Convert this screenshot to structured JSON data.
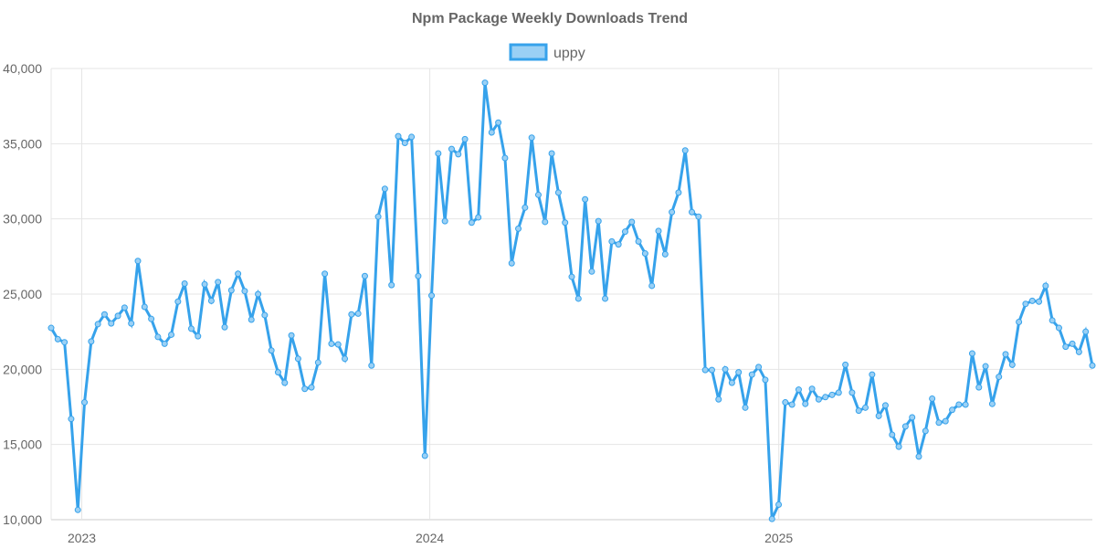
{
  "chart_data": {
    "type": "line",
    "title": "Npm Package Weekly Downloads Trend",
    "xlabel": "",
    "ylabel": "",
    "ylim": [
      10000,
      40000
    ],
    "y_ticks": [
      "10,000",
      "15,000",
      "20,000",
      "25,000",
      "30,000",
      "35,000",
      "40,000"
    ],
    "y_tick_values": [
      10000,
      15000,
      20000,
      25000,
      30000,
      35000,
      40000
    ],
    "x_ticks": [
      {
        "label": "2023",
        "date": "2023-01-01"
      },
      {
        "label": "2024",
        "date": "2024-01-01"
      },
      {
        "label": "2025",
        "date": "2025-01-01"
      }
    ],
    "grid": true,
    "legend_position": "top",
    "series": [
      {
        "name": "uppy",
        "color": "#36a2eb",
        "fill": "#9ad0f5",
        "x": [
          "2022-11-27",
          "2022-12-04",
          "2022-12-11",
          "2022-12-18",
          "2022-12-25",
          "2023-01-01",
          "2023-01-08",
          "2023-01-15",
          "2023-01-22",
          "2023-01-29",
          "2023-02-05",
          "2023-02-12",
          "2023-02-19",
          "2023-02-26",
          "2023-03-05",
          "2023-03-12",
          "2023-03-19",
          "2023-03-26",
          "2023-04-02",
          "2023-04-09",
          "2023-04-16",
          "2023-04-23",
          "2023-04-30",
          "2023-05-07",
          "2023-05-14",
          "2023-05-21",
          "2023-05-28",
          "2023-06-04",
          "2023-06-11",
          "2023-06-18",
          "2023-06-25",
          "2023-07-02",
          "2023-07-09",
          "2023-07-16",
          "2023-07-23",
          "2023-07-30",
          "2023-08-06",
          "2023-08-13",
          "2023-08-20",
          "2023-08-27",
          "2023-09-03",
          "2023-09-10",
          "2023-09-17",
          "2023-09-24",
          "2023-10-01",
          "2023-10-08",
          "2023-10-15",
          "2023-10-22",
          "2023-10-29",
          "2023-11-05",
          "2023-11-12",
          "2023-11-19",
          "2023-11-26",
          "2023-12-03",
          "2023-12-10",
          "2023-12-17",
          "2023-12-24",
          "2023-12-31",
          "2024-01-07",
          "2024-01-14",
          "2024-01-21",
          "2024-01-28",
          "2024-02-04",
          "2024-02-11",
          "2024-02-18",
          "2024-02-25",
          "2024-03-03",
          "2024-03-10",
          "2024-03-17",
          "2024-03-24",
          "2024-03-31",
          "2024-04-07",
          "2024-04-14",
          "2024-04-21",
          "2024-04-28",
          "2024-05-05",
          "2024-05-12",
          "2024-05-19",
          "2024-05-26",
          "2024-06-02",
          "2024-06-09",
          "2024-06-16",
          "2024-06-23",
          "2024-06-30",
          "2024-07-07",
          "2024-07-14",
          "2024-07-21",
          "2024-07-28",
          "2024-08-04",
          "2024-08-11",
          "2024-08-18",
          "2024-08-25",
          "2024-09-01",
          "2024-09-08",
          "2024-09-15",
          "2024-09-22",
          "2024-09-29",
          "2024-10-06",
          "2024-10-13",
          "2024-10-20",
          "2024-10-27",
          "2024-11-03",
          "2024-11-10",
          "2024-11-17",
          "2024-11-24",
          "2024-12-01",
          "2024-12-08",
          "2024-12-15",
          "2024-12-22",
          "2024-12-29",
          "2025-01-05",
          "2025-01-12",
          "2025-01-19",
          "2025-01-26",
          "2025-02-02",
          "2025-02-09",
          "2025-02-16",
          "2025-02-23",
          "2025-03-02",
          "2025-03-09",
          "2025-03-16",
          "2025-03-23",
          "2025-03-30",
          "2025-04-06",
          "2025-04-13",
          "2025-04-20",
          "2025-04-27",
          "2025-05-04",
          "2025-05-11",
          "2025-05-18",
          "2025-05-25",
          "2025-06-01",
          "2025-06-08",
          "2025-06-15",
          "2025-06-22",
          "2025-06-29",
          "2025-07-06",
          "2025-07-13",
          "2025-07-20",
          "2025-07-27",
          "2025-08-03",
          "2025-08-10",
          "2025-08-17",
          "2025-08-24",
          "2025-08-31",
          "2025-09-07",
          "2025-09-14",
          "2025-09-21",
          "2025-09-28",
          "2025-10-05",
          "2025-10-12",
          "2025-10-19",
          "2025-10-26",
          "2025-11-02",
          "2025-11-09",
          "2025-11-16",
          "2025-11-23"
        ],
        "values": [
          22750,
          22000,
          21800,
          16700,
          10650,
          17800,
          21850,
          23000,
          23650,
          23050,
          23550,
          24100,
          23050,
          27200,
          24150,
          23350,
          22150,
          21700,
          22300,
          24500,
          25700,
          22700,
          22200,
          25650,
          24550,
          25800,
          22800,
          25250,
          26350,
          25200,
          23300,
          25000,
          23600,
          21250,
          19800,
          19100,
          22250,
          20700,
          18700,
          18800,
          20450,
          26350,
          21700,
          21650,
          20700,
          23650,
          23700,
          26200,
          20250,
          30150,
          32000,
          25600,
          35500,
          35050,
          35450,
          26200,
          14250,
          24900,
          34350,
          29850,
          34650,
          34300,
          35300,
          29750,
          30100,
          39050,
          35750,
          36400,
          34050,
          27050,
          29350,
          30750,
          35400,
          31600,
          29800,
          34350,
          31750,
          29750,
          26150,
          24700,
          31300,
          26500,
          29850,
          24700,
          28500,
          28300,
          29150,
          29800,
          28500,
          27700,
          25550,
          29200,
          27650,
          30450,
          31750,
          34550,
          30450,
          30150,
          19950,
          19950,
          18000,
          20000,
          19100,
          19800,
          17450,
          19650,
          20150,
          19300,
          10050,
          11000,
          17800,
          17650,
          18650,
          17700,
          18700,
          18000,
          18150,
          18300,
          18450,
          20300,
          18450,
          17250,
          17450,
          19650,
          16900,
          17600,
          15650,
          14850,
          16200,
          16800,
          14200,
          15900,
          18050,
          16450,
          16550,
          17300,
          17650,
          17650,
          21050,
          18800,
          20200,
          17700,
          19500,
          21000,
          20300,
          23150,
          24350,
          24550,
          24500,
          25550,
          23250,
          22750,
          21500,
          21700,
          21150,
          22500,
          20250
        ]
      }
    ]
  }
}
